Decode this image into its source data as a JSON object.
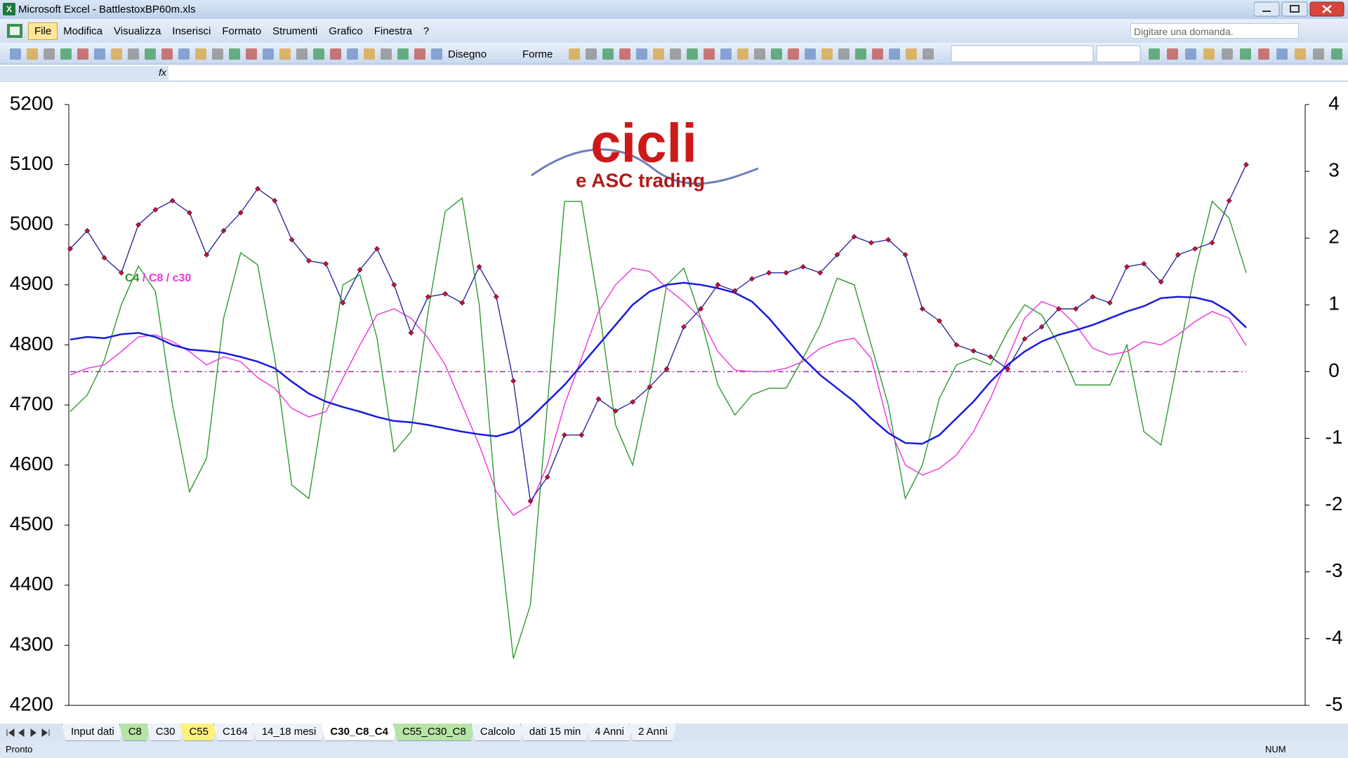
{
  "window": {
    "title": "Microsoft Excel - BattlestoxBP60m.xls"
  },
  "menu": [
    "File",
    "Modifica",
    "Visualizza",
    "Inserisci",
    "Formato",
    "Strumenti",
    "Grafico",
    "Finestra",
    "?"
  ],
  "help_box": "Digitare una domanda.",
  "toolbar": {
    "drawing": "Disegno",
    "shapes": "Forme"
  },
  "formula_bar": {
    "fx": "fx"
  },
  "logo": {
    "title": "cicli",
    "subtitle": "e ASC trading"
  },
  "chart_data": {
    "type": "line",
    "categories": [
      null,
      null,
      null,
      null,
      null,
      null,
      null,
      null,
      null,
      null,
      null,
      null,
      null,
      null,
      null,
      null,
      null,
      null,
      null,
      null,
      null,
      null,
      null,
      null,
      null,
      null,
      null,
      null,
      null,
      null,
      null,
      null,
      null,
      null,
      null,
      null,
      null,
      null,
      null,
      null,
      null,
      null,
      null,
      null,
      null,
      null,
      null,
      null,
      null,
      null,
      null,
      null,
      null,
      null,
      null,
      null,
      null,
      null,
      null,
      null,
      null,
      null,
      null,
      null,
      null,
      null,
      null,
      null,
      null,
      null
    ],
    "ylim": [
      4200,
      5200
    ],
    "yticks": [
      4200,
      4300,
      4400,
      4500,
      4600,
      4700,
      4800,
      4900,
      5000,
      5100,
      5200
    ],
    "y2lim": [
      -5,
      4
    ],
    "y2ticks": [
      -5,
      -4,
      -3,
      -2,
      -1,
      0,
      1,
      2,
      3,
      4
    ],
    "legend_separator": "/",
    "hlines": [
      {
        "value": 0,
        "axis": "y2",
        "color": "#993399"
      }
    ],
    "series": [
      {
        "color": "#2b2b9e",
        "marker_color": "#c8103c",
        "values": [
          4960,
          4990,
          4945,
          4920,
          5000,
          5025,
          5040,
          5020,
          4950,
          4990,
          5020,
          5060,
          5040,
          4975,
          4940,
          4935,
          4870,
          4925,
          4960,
          4900,
          4820,
          4880,
          4885,
          4870,
          4930,
          4880,
          4740,
          4540,
          4580,
          4650,
          4650,
          4710,
          4690,
          4705,
          4730,
          4760,
          4830,
          4860,
          4900,
          4890,
          4910,
          4920,
          4920,
          4930,
          4920,
          4950,
          4980,
          4970,
          4975,
          4950,
          4860,
          4840,
          4800,
          4790,
          4780,
          4760,
          4810,
          4830,
          4860,
          4860,
          4880,
          4870,
          4930,
          4935,
          4905,
          4950,
          4960,
          4970,
          5040,
          5100
        ]
      },
      {
        "name": "C4",
        "color": "#2e9a2e",
        "axis": "y2",
        "values": [
          -0.6,
          -0.35,
          0.17,
          1.0,
          1.58,
          1.2,
          -0.5,
          -1.8,
          -1.3,
          0.8,
          1.78,
          1.6,
          0.2,
          -1.7,
          -1.9,
          -0.3,
          1.3,
          1.45,
          0.5,
          -1.2,
          -0.9,
          0.9,
          2.4,
          2.6,
          1.0,
          -2.0,
          -4.3,
          -3.5,
          -0.5,
          2.55,
          2.55,
          1.0,
          -0.8,
          -1.4,
          -0.2,
          1.3,
          1.55,
          0.8,
          -0.2,
          -0.65,
          -0.35,
          -0.25,
          -0.25,
          0.2,
          0.7,
          1.4,
          1.3,
          0.4,
          -0.5,
          -1.9,
          -1.4,
          -0.4,
          0.1,
          0.2,
          0.1,
          0.6,
          1.0,
          0.85,
          0.4,
          -0.2,
          -0.2,
          -0.2,
          0.4,
          -0.9,
          -1.1,
          0.2,
          1.5,
          2.55,
          2.3,
          1.48
        ]
      },
      {
        "name": "C8",
        "color": "#ee33dd",
        "axis": "y2",
        "values": [
          -0.05,
          0.05,
          0.1,
          0.3,
          0.52,
          0.55,
          0.45,
          0.3,
          0.1,
          0.22,
          0.15,
          -0.09,
          -0.25,
          -0.55,
          -0.68,
          -0.6,
          -0.1,
          0.4,
          0.85,
          0.94,
          0.8,
          0.5,
          0.1,
          -0.5,
          -1.1,
          -1.8,
          -2.15,
          -2.0,
          -1.4,
          -0.5,
          0.2,
          0.9,
          1.3,
          1.55,
          1.5,
          1.25,
          1.05,
          0.8,
          0.3,
          0.02,
          0.0,
          0.0,
          0.05,
          0.15,
          0.35,
          0.45,
          0.5,
          0.2,
          -0.8,
          -1.4,
          -1.55,
          -1.45,
          -1.25,
          -0.9,
          -0.4,
          0.2,
          0.8,
          1.05,
          0.95,
          0.7,
          0.35,
          0.25,
          0.3,
          0.45,
          0.4,
          0.55,
          0.75,
          0.9,
          0.8,
          0.39
        ]
      },
      {
        "name": "c30",
        "color": "#1a1add",
        "axis": "y2",
        "values": [
          0.48,
          0.52,
          0.5,
          0.56,
          0.58,
          0.52,
          0.4,
          0.33,
          0.31,
          0.28,
          0.22,
          0.15,
          0.05,
          -0.15,
          -0.33,
          -0.45,
          -0.53,
          -0.6,
          -0.68,
          -0.74,
          -0.76,
          -0.8,
          -0.85,
          -0.9,
          -0.94,
          -0.97,
          -0.9,
          -0.7,
          -0.45,
          -0.2,
          0.1,
          0.4,
          0.7,
          1.0,
          1.2,
          1.3,
          1.33,
          1.3,
          1.25,
          1.18,
          1.05,
          0.8,
          0.5,
          0.2,
          -0.05,
          -0.25,
          -0.45,
          -0.7,
          -0.92,
          -1.07,
          -1.08,
          -0.95,
          -0.7,
          -0.45,
          -0.15,
          0.1,
          0.3,
          0.45,
          0.55,
          0.62,
          0.7,
          0.8,
          0.9,
          0.98,
          1.1,
          1.12,
          1.11,
          1.05,
          0.9,
          0.66
        ]
      }
    ]
  },
  "sheets": [
    {
      "name": "Input dati",
      "color": null
    },
    {
      "name": "C8",
      "color": "#b6e3a6"
    },
    {
      "name": "C30",
      "color": null
    },
    {
      "name": "C55",
      "color": "#fff27a"
    },
    {
      "name": "C164",
      "color": null
    },
    {
      "name": "14_18 mesi",
      "color": null
    },
    {
      "name": "C30_C8_C4",
      "color": "#ffffff"
    },
    {
      "name": "C55_C30_C8",
      "color": "#b6e3a6"
    },
    {
      "name": "Calcolo",
      "color": null
    },
    {
      "name": "dati 15 min",
      "color": null
    },
    {
      "name": "4 Anni",
      "color": null
    },
    {
      "name": "2 Anni",
      "color": null
    }
  ],
  "status": {
    "left": "Pronto",
    "right": "NUM"
  }
}
